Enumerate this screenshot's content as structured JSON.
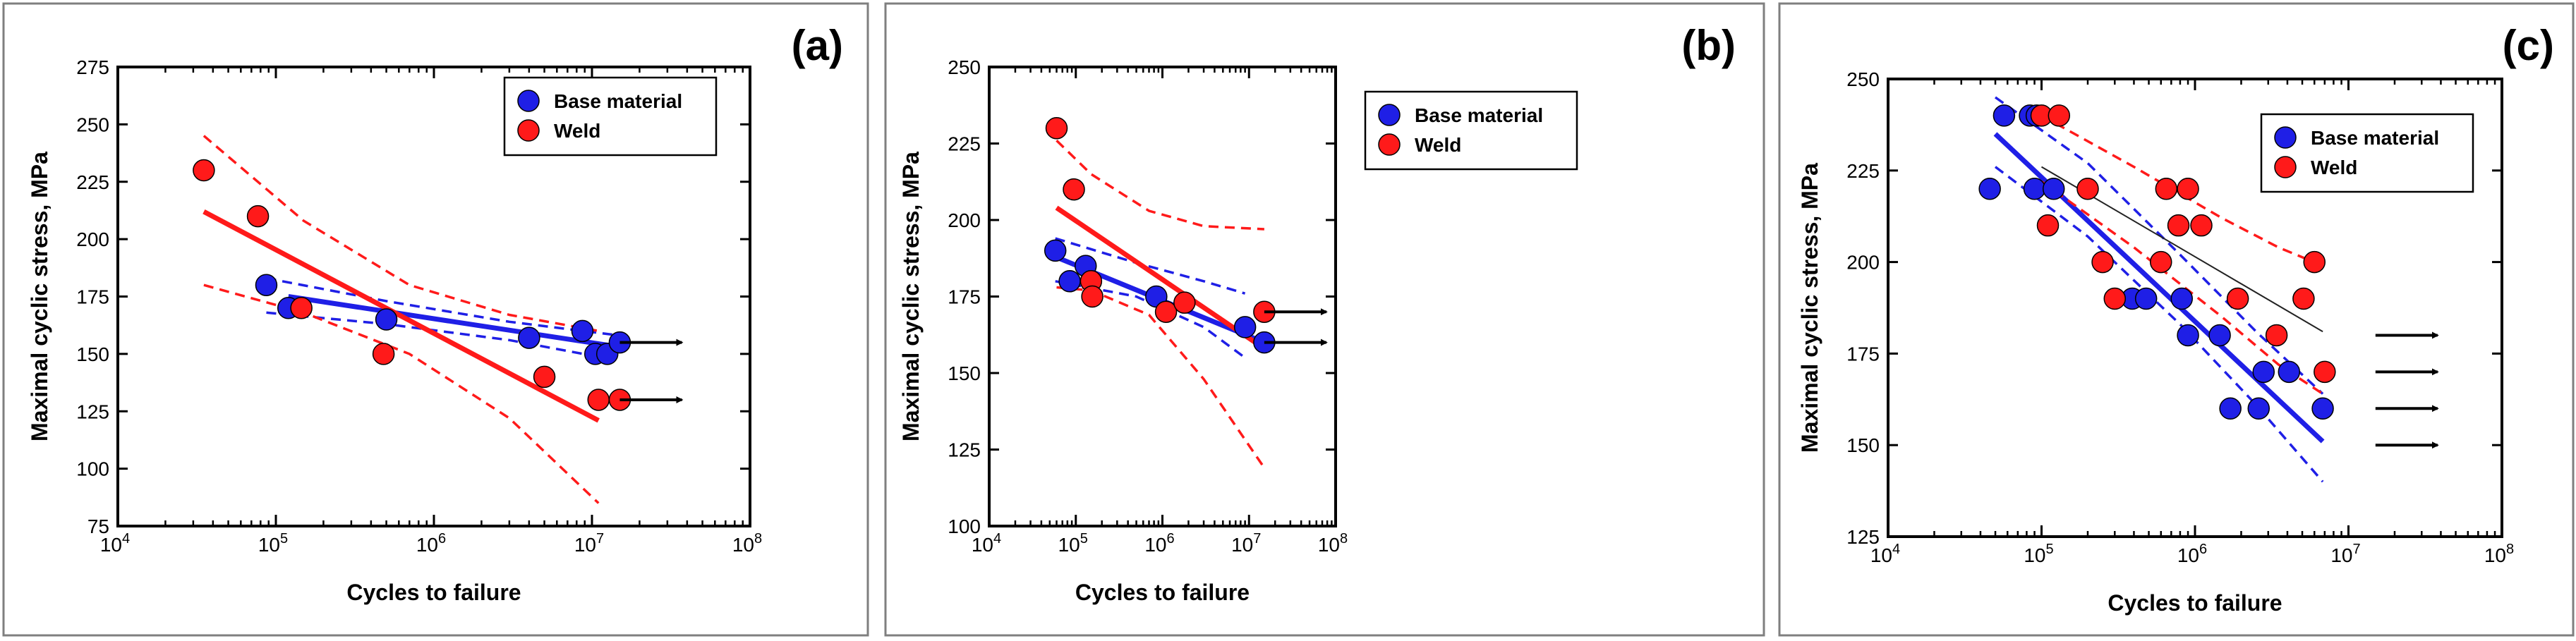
{
  "colors": {
    "base": "#1f1fe6",
    "weld": "#ff1a1a",
    "trend": "#222222",
    "arrow": "#000000"
  },
  "chart_data": [
    {
      "type": "scatter",
      "panel_label": "(a)",
      "xlabel": "Cycles to failure",
      "ylabel": "Maximal cyclic stress, MPa",
      "x_scale": "log",
      "xlim": [
        10000,
        100000000
      ],
      "ylim": [
        75,
        275
      ],
      "xticks": [
        10000,
        100000,
        1000000,
        10000000,
        100000000
      ],
      "xtick_labels": [
        {
          "base": "10",
          "exp": "4"
        },
        {
          "base": "10",
          "exp": "5"
        },
        {
          "base": "10",
          "exp": "6"
        },
        {
          "base": "10",
          "exp": "7"
        },
        {
          "base": "10",
          "exp": "8"
        }
      ],
      "yticks": [
        75,
        100,
        125,
        150,
        175,
        200,
        225,
        250,
        275
      ],
      "ytick_labels": [
        "75",
        "100",
        "125",
        "150",
        "175",
        "200",
        "225",
        "250",
        "275"
      ],
      "legend": [
        "Base material",
        "Weld"
      ],
      "series": [
        {
          "name": "Base material",
          "color_key": "base",
          "x": [
            87000,
            120000,
            500000,
            4000000,
            8700000,
            10500000,
            12500000,
            15000000
          ],
          "y": [
            180,
            170,
            165,
            157,
            160,
            150,
            150,
            155
          ]
        },
        {
          "name": "Weld",
          "color_key": "weld",
          "x": [
            35000,
            77000,
            145000,
            480000,
            5000000,
            11000000,
            15000000
          ],
          "y": [
            230,
            210,
            170,
            150,
            140,
            130,
            130
          ]
        }
      ],
      "fits": [
        {
          "series": "Base material",
          "style": "solid",
          "color_key": "base",
          "x": [
            120000,
            15000000
          ],
          "y": [
            175,
            153
          ]
        },
        {
          "series": "Base material",
          "style": "dashed",
          "color_key": "base",
          "x": [
            87000,
            500000,
            3000000,
            15000000
          ],
          "y": [
            183,
            173,
            164,
            158
          ]
        },
        {
          "series": "Base material",
          "style": "dashed",
          "color_key": "base",
          "x": [
            87000,
            500000,
            3000000,
            15000000
          ],
          "y": [
            168,
            163,
            156,
            147
          ]
        },
        {
          "series": "Weld",
          "style": "solid",
          "color_key": "weld",
          "x": [
            35000,
            11000000
          ],
          "y": [
            212,
            121
          ]
        },
        {
          "series": "Weld",
          "style": "dashed",
          "color_key": "weld",
          "x": [
            35000,
            150000,
            700000,
            3000000,
            11000000
          ],
          "y": [
            245,
            208,
            180,
            167,
            160
          ]
        },
        {
          "series": "Weld",
          "style": "dashed",
          "color_key": "weld",
          "x": [
            35000,
            150000,
            700000,
            3000000,
            11000000
          ],
          "y": [
            180,
            168,
            150,
            122,
            85
          ]
        }
      ],
      "runouts": [
        {
          "x": 15000000,
          "y": 155
        },
        {
          "x": 15000000,
          "y": 130
        }
      ]
    },
    {
      "type": "scatter",
      "panel_label": "(b)",
      "xlabel": "Cycles to failure",
      "ylabel": "Maximal cyclic stress, MPa",
      "x_scale": "log",
      "xlim": [
        10000,
        100000000
      ],
      "ylim": [
        100,
        250
      ],
      "xticks": [
        10000,
        100000,
        1000000,
        10000000,
        100000000
      ],
      "xtick_labels": [
        {
          "base": "10",
          "exp": "4"
        },
        {
          "base": "10",
          "exp": "5"
        },
        {
          "base": "10",
          "exp": "6"
        },
        {
          "base": "10",
          "exp": "7"
        },
        {
          "base": "10",
          "exp": "8"
        }
      ],
      "yticks": [
        100,
        125,
        150,
        175,
        200,
        225,
        250
      ],
      "ytick_labels": [
        "100",
        "125",
        "150",
        "175",
        "200",
        "225",
        "250"
      ],
      "legend": [
        "Base material",
        "Weld"
      ],
      "series": [
        {
          "name": "Base material",
          "color_key": "base",
          "x": [
            58000,
            85000,
            130000,
            850000,
            9000000,
            15000000
          ],
          "y": [
            190,
            180,
            185,
            175,
            165,
            160
          ]
        },
        {
          "name": "Weld",
          "color_key": "weld",
          "x": [
            60000,
            95000,
            150000,
            155000,
            1100000,
            1800000,
            15000000
          ],
          "y": [
            230,
            210,
            180,
            175,
            170,
            173,
            170
          ]
        }
      ],
      "fits": [
        {
          "series": "Base material",
          "style": "solid",
          "color_key": "base",
          "x": [
            58000,
            15000000
          ],
          "y": [
            188,
            160
          ]
        },
        {
          "series": "Base material",
          "style": "dashed",
          "color_key": "base",
          "x": [
            58000,
            500000,
            3000000,
            9000000
          ],
          "y": [
            194,
            186,
            180,
            176
          ]
        },
        {
          "series": "Base material",
          "style": "dashed",
          "color_key": "base",
          "x": [
            58000,
            500000,
            3000000,
            9000000
          ],
          "y": [
            180,
            175,
            165,
            155
          ]
        },
        {
          "series": "Weld",
          "style": "solid",
          "color_key": "weld",
          "x": [
            60000,
            15000000
          ],
          "y": [
            204,
            158
          ]
        },
        {
          "series": "Weld",
          "style": "dashed",
          "color_key": "weld",
          "x": [
            60000,
            150000,
            700000,
            3000000,
            15000000
          ],
          "y": [
            226,
            215,
            203,
            198,
            197
          ]
        },
        {
          "series": "Weld",
          "style": "dashed",
          "color_key": "weld",
          "x": [
            60000,
            150000,
            700000,
            3000000,
            15000000
          ],
          "y": [
            178,
            177,
            169,
            148,
            119
          ]
        }
      ],
      "runouts": [
        {
          "x": 15000000,
          "y": 170
        },
        {
          "x": 15000000,
          "y": 160
        }
      ]
    },
    {
      "type": "scatter",
      "panel_label": "(c)",
      "xlabel": "Cycles to failure",
      "ylabel": "Maximal cyclic stress, MPa",
      "x_scale": "log",
      "xlim": [
        10000,
        100000000
      ],
      "ylim": [
        125,
        250
      ],
      "xticks": [
        10000,
        100000,
        1000000,
        10000000,
        100000000
      ],
      "xtick_labels": [
        {
          "base": "10",
          "exp": "4"
        },
        {
          "base": "10",
          "exp": "5"
        },
        {
          "base": "10",
          "exp": "6"
        },
        {
          "base": "10",
          "exp": "7"
        },
        {
          "base": "10",
          "exp": "8"
        }
      ],
      "yticks": [
        125,
        150,
        175,
        200,
        225,
        250
      ],
      "ytick_labels": [
        "125",
        "150",
        "175",
        "200",
        "225",
        "250"
      ],
      "legend": [
        "Base material",
        "Weld"
      ],
      "series": [
        {
          "name": "Base material",
          "color_key": "base",
          "x": [
            46000,
            57000,
            84000,
            90000,
            93000,
            120000,
            390000,
            480000,
            820000,
            900000,
            1450000,
            1700000,
            2600000,
            2800000,
            4100000,
            6800000
          ],
          "y": [
            220,
            240,
            240,
            220,
            240,
            220,
            190,
            190,
            190,
            180,
            180,
            160,
            160,
            170,
            170,
            160
          ]
        },
        {
          "name": "Weld",
          "color_key": "weld",
          "x": [
            100000,
            110000,
            130000,
            200000,
            250000,
            300000,
            600000,
            650000,
            780000,
            900000,
            1100000,
            1900000,
            3400000,
            5100000,
            6000000,
            7000000
          ],
          "y": [
            240,
            210,
            240,
            220,
            200,
            190,
            200,
            220,
            210,
            220,
            210,
            190,
            180,
            190,
            200,
            170
          ]
        }
      ],
      "fits": [
        {
          "series": "Base material",
          "style": "solid",
          "color_key": "base",
          "x": [
            50000,
            6800000
          ],
          "y": [
            235,
            151
          ]
        },
        {
          "series": "Base material",
          "style": "dashed",
          "color_key": "base",
          "x": [
            50000,
            200000,
            800000,
            2500000,
            6800000
          ],
          "y": [
            245,
            227,
            202,
            181,
            164
          ]
        },
        {
          "series": "Base material",
          "style": "dashed",
          "color_key": "base",
          "x": [
            50000,
            200000,
            800000,
            2500000,
            6800000
          ],
          "y": [
            226,
            207,
            183,
            161,
            140
          ]
        },
        {
          "series": "Weld",
          "style": "solid",
          "color_key": "trend",
          "x": [
            100000,
            6800000
          ],
          "y": [
            226,
            181
          ]
        },
        {
          "series": "Weld",
          "style": "dashed",
          "color_key": "weld",
          "x": [
            100000,
            400000,
            1500000,
            3500000,
            6800000
          ],
          "y": [
            240,
            226,
            212,
            204,
            199
          ]
        },
        {
          "series": "Weld",
          "style": "dashed",
          "color_key": "weld",
          "x": [
            100000,
            400000,
            1500000,
            3500000,
            6800000
          ],
          "y": [
            222,
            204,
            185,
            172,
            164
          ]
        }
      ],
      "runouts": [
        {
          "x": 15000000,
          "y": 180
        },
        {
          "x": 15000000,
          "y": 170
        },
        {
          "x": 15000000,
          "y": 160
        },
        {
          "x": 15000000,
          "y": 150
        }
      ]
    }
  ]
}
